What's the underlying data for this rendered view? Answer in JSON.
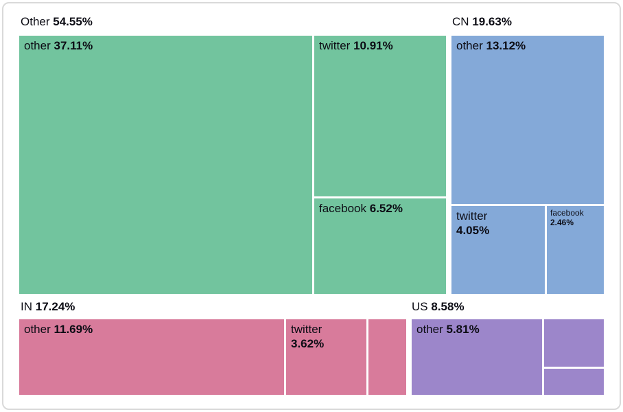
{
  "chart_data": {
    "type": "treemap",
    "title": "",
    "unit": "%",
    "legend_position": "none",
    "groups": [
      {
        "name": "Other",
        "pct": "54.55%",
        "value": 54.55,
        "color": "#72c49e",
        "children": [
          {
            "name": "other",
            "pct": "37.11%",
            "value": 37.11
          },
          {
            "name": "twitter",
            "pct": "10.91%",
            "value": 10.91
          },
          {
            "name": "facebook",
            "pct": "6.52%",
            "value": 6.52
          }
        ]
      },
      {
        "name": "CN",
        "pct": "19.63%",
        "value": 19.63,
        "color": "#84a9d8",
        "children": [
          {
            "name": "other",
            "pct": "13.12%",
            "value": 13.12
          },
          {
            "name": "twitter",
            "pct": "4.05%",
            "value": 4.05
          },
          {
            "name": "facebook",
            "pct": "2.46%",
            "value": 2.46
          }
        ]
      },
      {
        "name": "IN",
        "pct": "17.24%",
        "value": 17.24,
        "color": "#d87b9b",
        "children": [
          {
            "name": "other",
            "pct": "11.69%",
            "value": 11.69
          },
          {
            "name": "twitter",
            "pct": "3.62%",
            "value": 3.62
          },
          {
            "name": "",
            "pct": ""
          }
        ]
      },
      {
        "name": "US",
        "pct": "8.58%",
        "value": 8.58,
        "color": "#9c86ca",
        "children": [
          {
            "name": "other",
            "pct": "5.81%",
            "value": 5.81
          },
          {
            "name": "",
            "pct": ""
          },
          {
            "name": "",
            "pct": ""
          }
        ]
      }
    ]
  }
}
